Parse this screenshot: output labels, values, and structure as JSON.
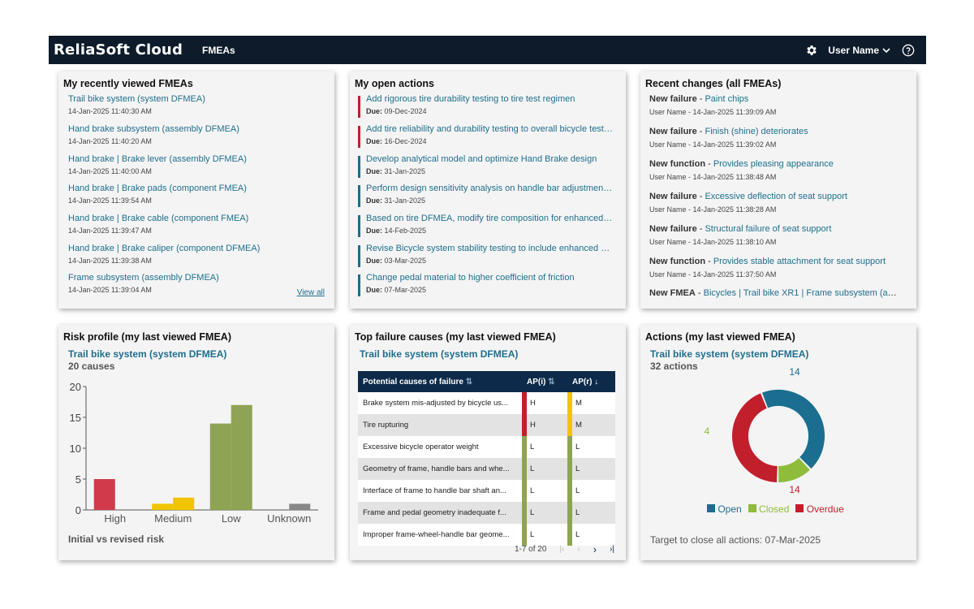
{
  "header": {
    "brand": "ReliaSoft Cloud",
    "nav": "FMEAs",
    "user": "User Name"
  },
  "recent_fmeas": {
    "title": "My recently viewed FMEAs",
    "view_all": "View all",
    "items": [
      {
        "name": "Trail bike system (system DFMEA)",
        "date": "14-Jan-2025 11:40:30 AM"
      },
      {
        "name": "Hand brake subsystem (assembly DFMEA)",
        "date": "14-Jan-2025 11:40:20 AM"
      },
      {
        "name": "Hand brake | Brake lever (assembly DFMEA)",
        "date": "14-Jan-2025 11:40:00 AM"
      },
      {
        "name": "Hand brake | Brake pads (component FMEA)",
        "date": "14-Jan-2025 11:39:54 AM"
      },
      {
        "name": "Hand brake | Brake cable (component FMEA)",
        "date": "14-Jan-2025 11:39:47 AM"
      },
      {
        "name": "Hand brake | Brake caliper (component DFMEA)",
        "date": "14-Jan-2025 11:39:38 AM"
      },
      {
        "name": "Frame subsystem (assembly DFMEA)",
        "date": "14-Jan-2025 11:39:04 AM"
      }
    ]
  },
  "open_actions": {
    "title": "My open actions",
    "due_label": "Due:",
    "items": [
      {
        "name": "Add rigorous tire durability testing to tire test regimen",
        "due": "09-Dec-2024",
        "status": "overdue"
      },
      {
        "name": "Add tire reliability and durability testing to overall bicycle test plan",
        "due": "16-Dec-2024",
        "status": "overdue"
      },
      {
        "name": "Develop analytical model and optimize Hand Brake design",
        "due": "31-Jan-2025",
        "status": "open"
      },
      {
        "name": "Perform design sensitivity analysis on handle bar adjustment s...",
        "due": "31-Jan-2025",
        "status": "open"
      },
      {
        "name": "Based on tire DFMEA, modify tire composition for enhanced du...",
        "due": "14-Feb-2025",
        "status": "open"
      },
      {
        "name": "Revise Bicycle system stability testing to include enhanced stee...",
        "due": "03-Mar-2025",
        "status": "open"
      },
      {
        "name": "Change pedal material to higher coefficient of friction",
        "due": "07-Mar-2025",
        "status": "open"
      }
    ]
  },
  "recent_changes": {
    "title": "Recent changes (all FMEAs)",
    "items": [
      {
        "type": "New failure",
        "name": "Paint chips",
        "meta": "User Name - 14-Jan-2025 11:39:09 AM"
      },
      {
        "type": "New failure",
        "name": "Finish (shine) deteriorates",
        "meta": "User Name - 14-Jan-2025 11:39:02 AM"
      },
      {
        "type": "New function",
        "name": "Provides pleasing appearance",
        "meta": "User Name - 14-Jan-2025 11:38:48 AM"
      },
      {
        "type": "New failure",
        "name": "Excessive deflection of seat support",
        "meta": "User Name - 14-Jan-2025 11:38:28 AM"
      },
      {
        "type": "New failure",
        "name": "Structural failure of seat support",
        "meta": "User Name - 14-Jan-2025 11:38:10 AM"
      },
      {
        "type": "New function",
        "name": "Provides stable attachment for seat support",
        "meta": "User Name - 14-Jan-2025 11:37:50 AM"
      },
      {
        "type": "New FMEA",
        "name": "Bicycles | Trail bike XR1 | Frame subsystem (ass...",
        "meta": ""
      }
    ]
  },
  "risk_profile": {
    "title": "Risk profile (my last viewed FMEA)",
    "fmea": "Trail bike system (system DFMEA)",
    "count": "20 causes",
    "footer": "Initial vs revised risk"
  },
  "top_causes": {
    "title": "Top failure causes (my last viewed FMEA)",
    "fmea": "Trail bike system (system DFMEA)",
    "col_cause": "Potential causes of failure",
    "col_api": "AP(i)",
    "col_apr": "AP(r)",
    "rows": [
      {
        "cause": "Brake system mis-adjusted by bicycle us...",
        "api": "H",
        "apr": "M"
      },
      {
        "cause": "Tire rupturing",
        "api": "H",
        "apr": "M"
      },
      {
        "cause": "Excessive bicycle operator weight",
        "api": "L",
        "apr": "L"
      },
      {
        "cause": "Geometry of frame, handle bars and whe...",
        "api": "L",
        "apr": "L"
      },
      {
        "cause": "Interface of frame to handle bar shaft an...",
        "api": "L",
        "apr": "L"
      },
      {
        "cause": "Frame and pedal geometry inadequate f...",
        "api": "L",
        "apr": "L"
      },
      {
        "cause": "Improper frame-wheel-handle bar geome...",
        "api": "L",
        "apr": "L"
      }
    ],
    "pager": "1-7 of 20"
  },
  "actions_summary": {
    "title": "Actions (my last viewed FMEA)",
    "fmea": "Trail bike system (system DFMEA)",
    "count": "32 actions",
    "target": "Target to close all actions: 07-Mar-2025"
  },
  "colors": {
    "high": "#d13a4a",
    "medium": "#f0c400",
    "low": "#8ea454",
    "unknown": "#888888",
    "open": "#1b6e8f",
    "closed": "#8fbc3a",
    "overdue": "#c21f2c"
  },
  "chart_data": [
    {
      "type": "bar",
      "categories": [
        "High",
        "Medium",
        "Low",
        "Unknown"
      ],
      "series": [
        {
          "name": "Initial",
          "values": [
            5,
            1,
            14,
            0
          ]
        },
        {
          "name": "Revised",
          "values": [
            0,
            2,
            17,
            1
          ]
        }
      ],
      "ylim": [
        0,
        20
      ],
      "yticks": [
        0,
        5,
        10,
        15,
        20
      ]
    },
    {
      "type": "pie",
      "labels": [
        "Open",
        "Closed",
        "Overdue"
      ],
      "values": [
        14,
        4,
        14
      ]
    }
  ]
}
